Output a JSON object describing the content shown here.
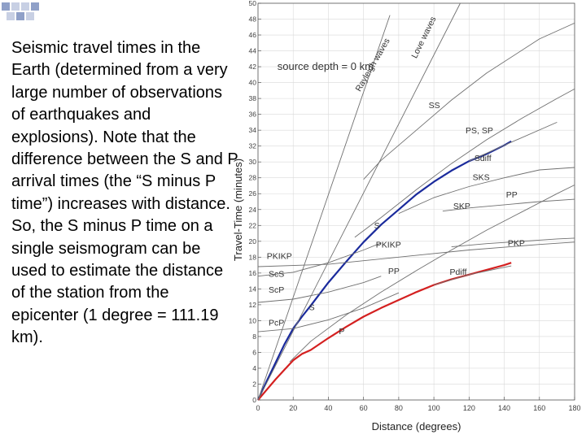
{
  "slide": {
    "text": "Seismic travel times in the Earth (determined from a very large number of observations of earthquakes and explosions).  Note that the difference between the S and P arrival times (the “S minus P time”) increases with distance.  So, the S minus P time on a single seismogram can be used to estimate the distance of the station from the epicenter (1 degree = 111.19 km).",
    "decoration": {
      "name": "corner-squares-icon",
      "colors": [
        "#8fa0c8",
        "#c8d0e4"
      ]
    }
  },
  "chart_data": {
    "type": "line",
    "annotation": "source depth = 0 km",
    "xlabel": "Distance (degrees)",
    "ylabel": "Travel-Time (minutes)",
    "xlim": [
      0,
      180
    ],
    "ylim": [
      0,
      50
    ],
    "xticks": [
      0,
      20,
      40,
      60,
      80,
      100,
      120,
      140,
      160,
      180
    ],
    "yticks": [
      0,
      2,
      4,
      6,
      8,
      10,
      12,
      14,
      16,
      18,
      20,
      22,
      24,
      26,
      28,
      30,
      32,
      34,
      36,
      38,
      40,
      42,
      44,
      46,
      48,
      50
    ],
    "grid": true,
    "colors": {
      "S": "#1a2a9c",
      "P": "#d42020",
      "other": "#707070",
      "text": "#404040"
    },
    "series": [
      {
        "name": "S",
        "emphasis": "blue",
        "x": [
          0,
          5,
          10,
          15,
          20,
          25,
          30,
          40,
          50,
          60,
          70,
          80,
          90,
          100,
          110,
          120,
          130,
          140,
          144
        ],
        "y": [
          0,
          2.4,
          4.7,
          7.0,
          9.0,
          10.5,
          11.9,
          14.8,
          17.4,
          19.9,
          22.1,
          24.0,
          25.9,
          27.5,
          28.9,
          30.1,
          31.0,
          32.1,
          32.6
        ]
      },
      {
        "name": "P",
        "emphasis": "red",
        "x": [
          0,
          5,
          10,
          15,
          20,
          25,
          30,
          40,
          50,
          60,
          70,
          80,
          90,
          100,
          110,
          120,
          130,
          140,
          144
        ],
        "y": [
          0,
          1.3,
          2.6,
          3.8,
          5.0,
          5.8,
          6.3,
          7.8,
          9.2,
          10.5,
          11.6,
          12.6,
          13.6,
          14.5,
          15.2,
          15.8,
          16.4,
          17.0,
          17.3
        ]
      },
      {
        "name": "Rayleigh waves",
        "x": [
          0,
          75
        ],
        "y": [
          0,
          48.5
        ]
      },
      {
        "name": "Love waves",
        "x": [
          0,
          115
        ],
        "y": [
          0,
          50
        ]
      },
      {
        "name": "SS",
        "x": [
          60,
          70,
          90,
          110,
          130,
          160,
          180
        ],
        "y": [
          27.8,
          30.2,
          34.0,
          37.8,
          41.2,
          45.5,
          47.5
        ]
      },
      {
        "name": "PS, SP",
        "x": [
          55,
          70,
          90,
          110,
          130,
          150,
          170,
          180
        ],
        "y": [
          20.5,
          23.0,
          26.5,
          29.8,
          32.8,
          35.5,
          38.0,
          39.2
        ]
      },
      {
        "name": "SKS",
        "x": [
          80,
          100,
          120,
          140,
          160,
          180
        ],
        "y": [
          23.5,
          25.5,
          26.9,
          28.0,
          29.0,
          29.3
        ]
      },
      {
        "name": "PP",
        "x": [
          18,
          30,
          50,
          70,
          90,
          110,
          130,
          150,
          170,
          180
        ],
        "y": [
          4.8,
          7.4,
          10.7,
          13.6,
          16.3,
          18.9,
          21.4,
          23.7,
          26.0,
          27.1
        ]
      },
      {
        "name": "SKP",
        "x": [
          105,
          120,
          140,
          160,
          180
        ],
        "y": [
          23.8,
          24.2,
          24.6,
          25.0,
          25.3
        ]
      },
      {
        "name": "PKP",
        "x": [
          110,
          130,
          150,
          170,
          180
        ],
        "y": [
          19.3,
          19.7,
          20.0,
          20.3,
          20.4
        ]
      },
      {
        "name": "PKiKP",
        "x": [
          0,
          40,
          80,
          120,
          160,
          180
        ],
        "y": [
          16.8,
          17.1,
          18.0,
          18.9,
          19.6,
          19.9
        ]
      },
      {
        "name": "ScS",
        "x": [
          0,
          20,
          40,
          60,
          70
        ],
        "y": [
          15.6,
          16.1,
          17.3,
          18.9,
          19.8
        ]
      },
      {
        "name": "ScP",
        "x": [
          0,
          20,
          40,
          60,
          70
        ],
        "y": [
          12.3,
          12.7,
          13.6,
          14.8,
          15.6
        ]
      },
      {
        "name": "PcP",
        "x": [
          0,
          20,
          40,
          60,
          80
        ],
        "y": [
          8.6,
          9.0,
          10.1,
          11.6,
          13.5
        ]
      },
      {
        "name": "Pdiff",
        "x": [
          100,
          120,
          144
        ],
        "y": [
          14.5,
          15.8,
          16.9
        ]
      },
      {
        "name": "Sdiff",
        "x": [
          120,
          140,
          170
        ],
        "y": [
          30.1,
          32.1,
          35.0
        ]
      }
    ],
    "labels": [
      {
        "text": "Rayleigh waves",
        "x": 58,
        "y": 38.8,
        "rotate": -60
      },
      {
        "text": "Love waves",
        "x": 90,
        "y": 43.0,
        "rotate": -64
      },
      {
        "text": "SS",
        "x": 97,
        "y": 36.8
      },
      {
        "text": "PS, SP",
        "x": 118,
        "y": 33.6
      },
      {
        "text": "Sdiff",
        "x": 123,
        "y": 30.1
      },
      {
        "text": "SKS",
        "x": 122,
        "y": 27.7
      },
      {
        "text": "PP",
        "x": 141,
        "y": 25.5
      },
      {
        "text": "SKP",
        "x": 111,
        "y": 24.1
      },
      {
        "text": "S",
        "x": 66,
        "y": 21.6
      },
      {
        "text": "PKP",
        "x": 142,
        "y": 19.4
      },
      {
        "text": "PKIKP",
        "x": 67,
        "y": 19.2
      },
      {
        "text": "PKIKP",
        "x": 5,
        "y": 17.8
      },
      {
        "text": "PP",
        "x": 74,
        "y": 15.9
      },
      {
        "text": "Pdiff",
        "x": 109,
        "y": 15.8
      },
      {
        "text": "ScS",
        "x": 6,
        "y": 15.5
      },
      {
        "text": "ScP",
        "x": 6,
        "y": 13.5
      },
      {
        "text": "S",
        "x": 29,
        "y": 11.3
      },
      {
        "text": "PcP",
        "x": 6,
        "y": 9.4
      },
      {
        "text": "P",
        "x": 46,
        "y": 8.3
      }
    ]
  }
}
